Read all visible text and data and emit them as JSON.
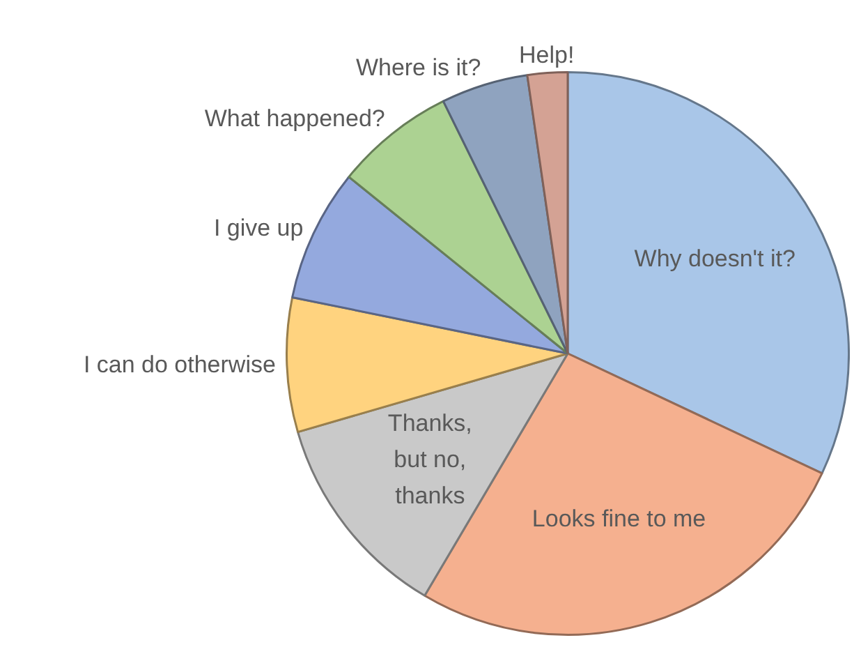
{
  "chart_data": {
    "type": "pie",
    "categories": [
      "Why doesn't it?",
      "Looks fine to me",
      "Thanks, but no, thanks",
      "I can do otherwise",
      "I give up",
      "What happened?",
      "Where is it?",
      "Help!"
    ],
    "values": [
      32,
      26.5,
      12,
      7.7,
      7.6,
      6.9,
      5,
      2.3
    ],
    "colors": [
      "#a9c6e8",
      "#f5b08f",
      "#c9c9c9",
      "#ffd37f",
      "#94a9de",
      "#acd292",
      "#8fa3bf",
      "#d4a294"
    ],
    "legend": false
  }
}
